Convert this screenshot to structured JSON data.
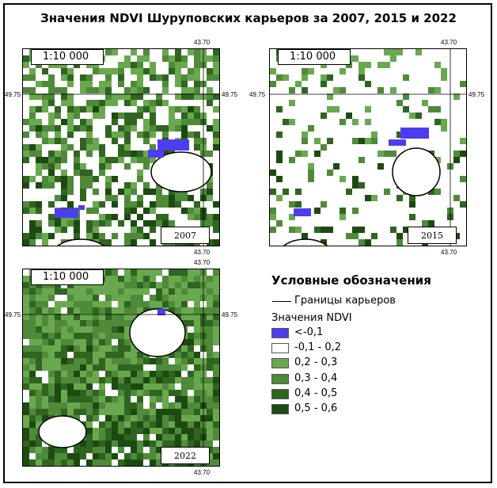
{
  "title": "Значения NDVI Шуруповских карьеров за 2007, 2015 и 2022",
  "maps": [
    {
      "year": "2007",
      "scale": "1:10 000",
      "lon_top": "43.70",
      "lon_bottom": "43.70",
      "lat_left": "49.75",
      "lat_right": "49.75"
    },
    {
      "year": "2015",
      "scale": "1:10 000",
      "lon_top": "43.70",
      "lon_bottom": "43.70",
      "lat_left": "49.75",
      "lat_right": "49.75"
    },
    {
      "year": "2022",
      "scale": "1:10 000",
      "lon_top": "43.70",
      "lon_bottom": "43.70",
      "lat_left": "49.75",
      "lat_right": "49.75"
    }
  ],
  "legend": {
    "title": "Условные обозначения",
    "boundary_label": "Границы карьеров",
    "ndvi_title": "Значения NDVI",
    "classes": [
      {
        "label": "<-0,1",
        "color": "#4d3df0"
      },
      {
        "label": "-0,1 - 0,2",
        "color": "#ffffff"
      },
      {
        "label": "0,2 - 0,3",
        "color": "#6aa84f"
      },
      {
        "label": "0,3 - 0,4",
        "color": "#4f8a3a"
      },
      {
        "label": "0,4 - 0,5",
        "color": "#2f6520"
      },
      {
        "label": "0,5 - 0,6",
        "color": "#1d4a10"
      }
    ]
  }
}
